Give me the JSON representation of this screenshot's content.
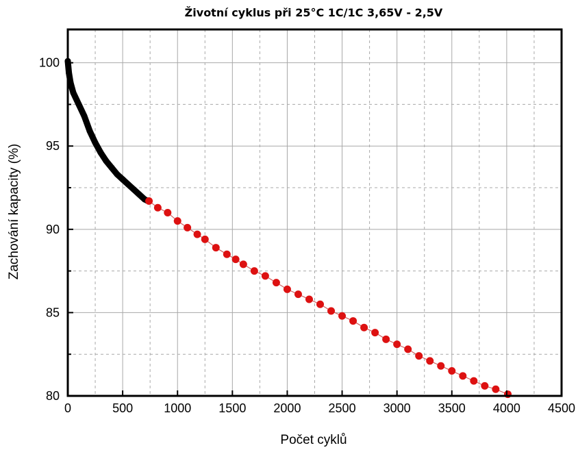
{
  "chart_data": {
    "type": "scatter",
    "title": "Životní cyklus při 25°C  1C/1C  3,65V - 2,5V",
    "xlabel": "Počet cyklů",
    "ylabel": "Zachování kapacity (%)",
    "xlim": [
      0,
      4500
    ],
    "ylim": [
      80,
      102
    ],
    "xticks": [
      0,
      500,
      1000,
      1500,
      2000,
      2500,
      3000,
      3500,
      4000,
      4500
    ],
    "yticks": [
      80,
      85,
      90,
      95,
      100
    ],
    "grid": true,
    "colors": {
      "dense": "#000000",
      "markers": "#dd1111",
      "line": "#d06060",
      "grid": "#a8a8a8"
    },
    "series": [
      {
        "style": "dense-black",
        "x": [
          0,
          10,
          25,
          50,
          100,
          150,
          200,
          250,
          300,
          350,
          400,
          450,
          500,
          550,
          600,
          650,
          700,
          730
        ],
        "y": [
          100.1,
          99.4,
          98.8,
          98.2,
          97.5,
          96.8,
          95.9,
          95.2,
          94.6,
          94.1,
          93.7,
          93.3,
          93.0,
          92.7,
          92.4,
          92.1,
          91.8,
          91.7
        ]
      },
      {
        "style": "red-markers",
        "x": [
          740,
          820,
          910,
          1000,
          1090,
          1180,
          1250,
          1350,
          1450,
          1530,
          1600,
          1700,
          1800,
          1900,
          2000,
          2100,
          2200,
          2300,
          2400,
          2500,
          2600,
          2700,
          2800,
          2900,
          3000,
          3100,
          3200,
          3300,
          3400,
          3500,
          3600,
          3700,
          3800,
          3900,
          4010
        ],
        "y": [
          91.7,
          91.3,
          91.0,
          90.5,
          90.1,
          89.7,
          89.4,
          88.9,
          88.5,
          88.2,
          87.9,
          87.5,
          87.2,
          86.8,
          86.4,
          86.1,
          85.8,
          85.5,
          85.1,
          84.8,
          84.5,
          84.1,
          83.8,
          83.4,
          83.1,
          82.8,
          82.4,
          82.1,
          81.8,
          81.5,
          81.2,
          80.9,
          80.6,
          80.4,
          80.1
        ]
      }
    ]
  }
}
